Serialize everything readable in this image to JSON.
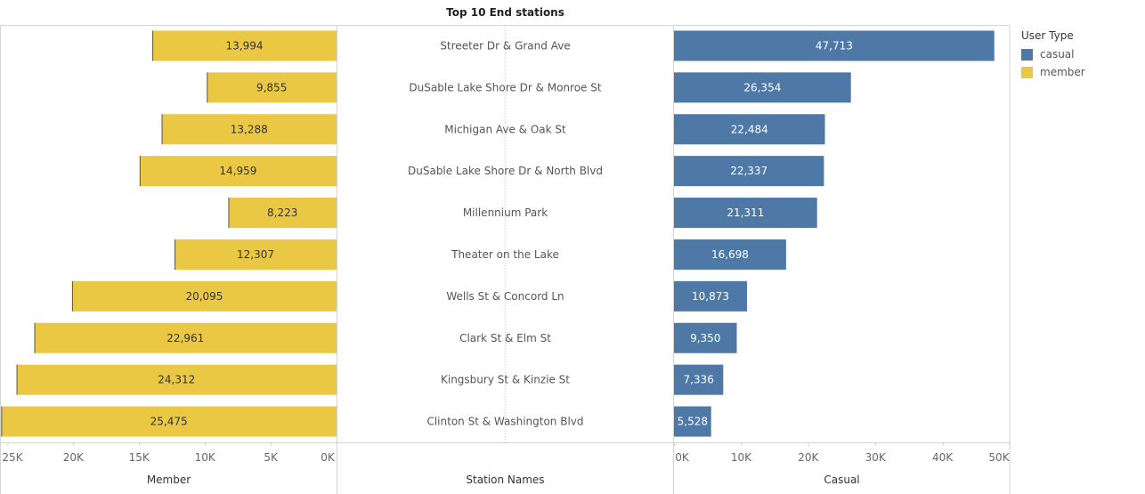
{
  "chart_data": {
    "type": "bar",
    "title": "Top 10 End stations",
    "categories": [
      "Streeter Dr & Grand Ave",
      "DuSable Lake Shore Dr & Monroe St",
      "Michigan Ave & Oak St",
      "DuSable Lake Shore Dr & North Blvd",
      "Millennium Park",
      "Theater on the Lake",
      "Wells St & Concord Ln",
      "Clark St & Elm St",
      "Kingsbury St & Kinzie St",
      "Clinton St & Washington Blvd"
    ],
    "series": [
      {
        "name": "member",
        "color": "#EBC844",
        "values": [
          13994,
          9855,
          13288,
          14959,
          8223,
          12307,
          20095,
          22961,
          24312,
          25475
        ],
        "labels": [
          "13,994",
          "9,855",
          "13,288",
          "14,959",
          "8,223",
          "12,307",
          "20,095",
          "22,961",
          "24,312",
          "25,475"
        ]
      },
      {
        "name": "casual",
        "color": "#4E79A7",
        "values": [
          47713,
          26354,
          22484,
          22337,
          21311,
          16698,
          10873,
          9350,
          7336,
          5528
        ],
        "labels": [
          "47,713",
          "26,354",
          "22,484",
          "22,337",
          "21,311",
          "16,698",
          "10,873",
          "9,350",
          "7,336",
          "5,528"
        ]
      }
    ],
    "member_axis": {
      "label": "Member",
      "ticks": [
        25000,
        20000,
        15000,
        10000,
        5000,
        0
      ],
      "tick_labels": [
        "25K",
        "20K",
        "15K",
        "10K",
        "5K",
        "0K"
      ],
      "range": [
        0,
        25500
      ],
      "reversed": true
    },
    "station_axis_label": "Station Names",
    "casual_axis": {
      "label": "Casual",
      "ticks": [
        0,
        10000,
        20000,
        30000,
        40000,
        50000
      ],
      "tick_labels": [
        "0K",
        "10K",
        "20K",
        "30K",
        "40K",
        "50K"
      ],
      "range": [
        0,
        50000
      ]
    },
    "legend": {
      "title": "User Type",
      "placement": "right",
      "items": [
        {
          "label": "casual",
          "color": "#4E79A7"
        },
        {
          "label": "member",
          "color": "#EBC844"
        }
      ]
    }
  }
}
